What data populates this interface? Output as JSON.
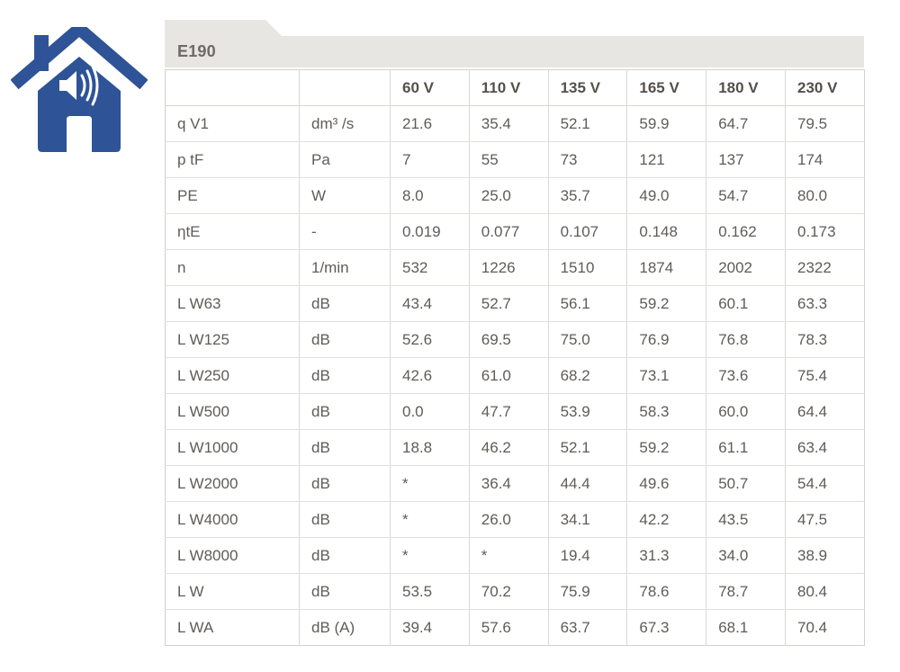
{
  "icon": {
    "name": "house-sound-icon",
    "color": "#2e5397"
  },
  "panel": {
    "title": "E190"
  },
  "colors": {
    "accent_blue": "#2e5397",
    "tab_background": "#e8e6e3",
    "title_text": "#6e6a66",
    "cell_text": "#5f5c59",
    "header_text": "#54504c",
    "border_outer": "#d2d0cd",
    "border_inner": "#dad8d5"
  },
  "table": {
    "columns": [
      "",
      "",
      "60 V",
      "110 V",
      "135 V",
      "165 V",
      "180 V",
      "230 V"
    ],
    "rows": [
      {
        "param": "q V1",
        "unit": "dm³ /s",
        "values": [
          "21.6",
          "35.4",
          "52.1",
          "59.9",
          "64.7",
          "79.5"
        ]
      },
      {
        "param": "p tF",
        "unit": "Pa",
        "values": [
          "7",
          "55",
          "73",
          "121",
          "137",
          "174"
        ]
      },
      {
        "param": "PE",
        "unit": "W",
        "values": [
          "8.0",
          "25.0",
          "35.7",
          "49.0",
          "54.7",
          "80.0"
        ]
      },
      {
        "param": "ηtE",
        "unit": "-",
        "values": [
          "0.019",
          "0.077",
          "0.107",
          "0.148",
          "0.162",
          "0.173"
        ]
      },
      {
        "param": "n",
        "unit": "1/min",
        "values": [
          "532",
          "1226",
          "1510",
          "1874",
          "2002",
          "2322"
        ]
      },
      {
        "param": "L W63",
        "unit": "dB",
        "values": [
          "43.4",
          "52.7",
          "56.1",
          "59.2",
          "60.1",
          "63.3"
        ]
      },
      {
        "param": "L W125",
        "unit": "dB",
        "values": [
          "52.6",
          "69.5",
          "75.0",
          "76.9",
          "76.8",
          "78.3"
        ]
      },
      {
        "param": "L W250",
        "unit": "dB",
        "values": [
          "42.6",
          "61.0",
          "68.2",
          "73.1",
          "73.6",
          "75.4"
        ]
      },
      {
        "param": "L W500",
        "unit": "dB",
        "values": [
          "0.0",
          "47.7",
          "53.9",
          "58.3",
          "60.0",
          "64.4"
        ]
      },
      {
        "param": "L W1000",
        "unit": "dB",
        "values": [
          "18.8",
          "46.2",
          "52.1",
          "59.2",
          "61.1",
          "63.4"
        ]
      },
      {
        "param": "L W2000",
        "unit": "dB",
        "values": [
          "*",
          "36.4",
          "44.4",
          "49.6",
          "50.7",
          "54.4"
        ]
      },
      {
        "param": "L W4000",
        "unit": "dB",
        "values": [
          "*",
          "26.0",
          "34.1",
          "42.2",
          "43.5",
          "47.5"
        ]
      },
      {
        "param": "L W8000",
        "unit": "dB",
        "values": [
          "*",
          "*",
          "19.4",
          "31.3",
          "34.0",
          "38.9"
        ]
      },
      {
        "param": "L W",
        "unit": "dB",
        "values": [
          "53.5",
          "70.2",
          "75.9",
          "78.6",
          "78.7",
          "80.4"
        ]
      },
      {
        "param": "L WA",
        "unit": "dB (A)",
        "values": [
          "39.4",
          "57.6",
          "63.7",
          "67.3",
          "68.1",
          "70.4"
        ]
      }
    ]
  }
}
